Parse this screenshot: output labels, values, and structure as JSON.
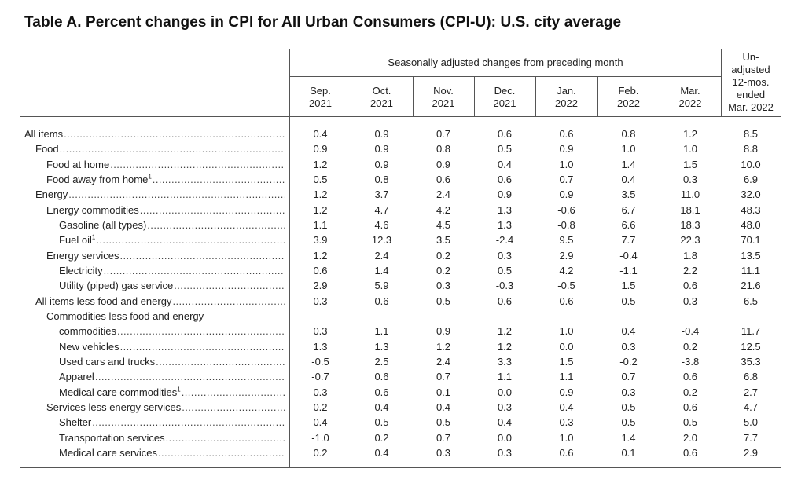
{
  "title": "Table A. Percent changes in CPI for All Urban Consumers (CPI-U): U.S. city average",
  "header": {
    "group_label": "Seasonally adjusted changes from preceding month",
    "months": [
      {
        "line1": "Sep.",
        "line2": "2021"
      },
      {
        "line1": "Oct.",
        "line2": "2021"
      },
      {
        "line1": "Nov.",
        "line2": "2021"
      },
      {
        "line1": "Dec.",
        "line2": "2021"
      },
      {
        "line1": "Jan.",
        "line2": "2022"
      },
      {
        "line1": "Feb.",
        "line2": "2022"
      },
      {
        "line1": "Mar.",
        "line2": "2022"
      }
    ],
    "unadjusted": [
      "Un-",
      "adjusted",
      "12-mos.",
      "ended",
      "Mar. 2022"
    ]
  },
  "rows": [
    {
      "label": "All items",
      "indent": 0,
      "values": [
        "0.4",
        "0.9",
        "0.7",
        "0.6",
        "0.6",
        "0.8",
        "1.2",
        "8.5"
      ]
    },
    {
      "label": "Food",
      "indent": 1,
      "values": [
        "0.9",
        "0.9",
        "0.8",
        "0.5",
        "0.9",
        "1.0",
        "1.0",
        "8.8"
      ]
    },
    {
      "label": "Food at home",
      "indent": 2,
      "values": [
        "1.2",
        "0.9",
        "0.9",
        "0.4",
        "1.0",
        "1.4",
        "1.5",
        "10.0"
      ]
    },
    {
      "label": "Food away from home",
      "footnote": "1",
      "indent": 2,
      "values": [
        "0.5",
        "0.8",
        "0.6",
        "0.6",
        "0.7",
        "0.4",
        "0.3",
        "6.9"
      ]
    },
    {
      "label": "Energy",
      "indent": 1,
      "values": [
        "1.2",
        "3.7",
        "2.4",
        "0.9",
        "0.9",
        "3.5",
        "11.0",
        "32.0"
      ]
    },
    {
      "label": "Energy commodities",
      "indent": 2,
      "values": [
        "1.2",
        "4.7",
        "4.2",
        "1.3",
        "-0.6",
        "6.7",
        "18.1",
        "48.3"
      ]
    },
    {
      "label": "Gasoline (all types)",
      "indent": 3,
      "values": [
        "1.1",
        "4.6",
        "4.5",
        "1.3",
        "-0.8",
        "6.6",
        "18.3",
        "48.0"
      ]
    },
    {
      "label": "Fuel oil",
      "footnote": "1",
      "indent": 3,
      "values": [
        "3.9",
        "12.3",
        "3.5",
        "-2.4",
        "9.5",
        "7.7",
        "22.3",
        "70.1"
      ]
    },
    {
      "label": "Energy services",
      "indent": 2,
      "values": [
        "1.2",
        "2.4",
        "0.2",
        "0.3",
        "2.9",
        "-0.4",
        "1.8",
        "13.5"
      ]
    },
    {
      "label": "Electricity",
      "indent": 3,
      "values": [
        "0.6",
        "1.4",
        "0.2",
        "0.5",
        "4.2",
        "-1.1",
        "2.2",
        "11.1"
      ]
    },
    {
      "label": "Utility (piped) gas service",
      "indent": 3,
      "values": [
        "2.9",
        "5.9",
        "0.3",
        "-0.3",
        "-0.5",
        "1.5",
        "0.6",
        "21.6"
      ]
    },
    {
      "label": "All items less food and energy",
      "indent": 1,
      "values": [
        "0.3",
        "0.6",
        "0.5",
        "0.6",
        "0.6",
        "0.5",
        "0.3",
        "6.5"
      ]
    },
    {
      "label": "commodities",
      "pre_label": "Commodities less food and energy",
      "indent": 2,
      "values": [
        "0.3",
        "1.1",
        "0.9",
        "1.2",
        "1.0",
        "0.4",
        "-0.4",
        "11.7"
      ]
    },
    {
      "label": "New vehicles",
      "indent": 3,
      "values": [
        "1.3",
        "1.3",
        "1.2",
        "1.2",
        "0.0",
        "0.3",
        "0.2",
        "12.5"
      ]
    },
    {
      "label": "Used cars and trucks",
      "indent": 3,
      "values": [
        "-0.5",
        "2.5",
        "2.4",
        "3.3",
        "1.5",
        "-0.2",
        "-3.8",
        "35.3"
      ]
    },
    {
      "label": "Apparel",
      "indent": 3,
      "values": [
        "-0.7",
        "0.6",
        "0.7",
        "1.1",
        "1.1",
        "0.7",
        "0.6",
        "6.8"
      ]
    },
    {
      "label": "Medical care commodities",
      "footnote": "1",
      "indent": 3,
      "values": [
        "0.3",
        "0.6",
        "0.1",
        "0.0",
        "0.9",
        "0.3",
        "0.2",
        "2.7"
      ]
    },
    {
      "label": "Services less energy services",
      "indent": 2,
      "values": [
        "0.2",
        "0.4",
        "0.4",
        "0.3",
        "0.4",
        "0.5",
        "0.6",
        "4.7"
      ]
    },
    {
      "label": "Shelter",
      "indent": 3,
      "values": [
        "0.4",
        "0.5",
        "0.5",
        "0.4",
        "0.3",
        "0.5",
        "0.5",
        "5.0"
      ]
    },
    {
      "label": "Transportation services",
      "indent": 3,
      "values": [
        "-1.0",
        "0.2",
        "0.7",
        "0.0",
        "1.0",
        "1.4",
        "2.0",
        "7.7"
      ]
    },
    {
      "label": "Medical care services",
      "indent": 3,
      "values": [
        "0.2",
        "0.4",
        "0.3",
        "0.3",
        "0.6",
        "0.1",
        "0.6",
        "2.9"
      ]
    }
  ]
}
